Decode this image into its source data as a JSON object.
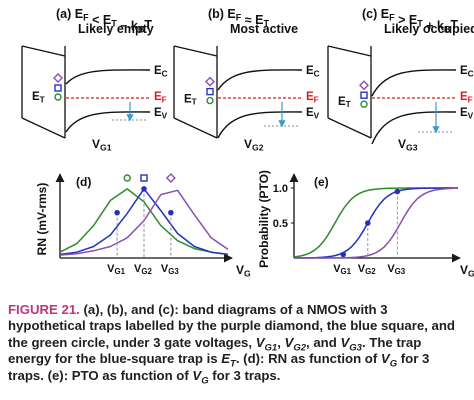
{
  "band_panels": [
    {
      "tag": "(a)",
      "condition": "E_F < E_T − k_BT",
      "status": "Likely empty",
      "gate": "V_G1",
      "labels": {
        "ec": "E_C",
        "ef": "E_F",
        "ev": "E_V",
        "et": "E_T"
      }
    },
    {
      "tag": "(b)",
      "condition": "E_F ≈ E_T",
      "status": "Most active",
      "gate": "V_G2",
      "labels": {
        "ec": "E_C",
        "ef": "E_F",
        "ev": "E_V",
        "et": "E_T"
      }
    },
    {
      "tag": "(c)",
      "condition": "E_F > E_T + k_BT",
      "status": "Likely occupied",
      "gate": "V_G3",
      "labels": {
        "ec": "E_C",
        "ef": "E_F",
        "ev": "E_V",
        "et": "E_T"
      }
    }
  ],
  "chart_data": [
    {
      "type": "line",
      "tag": "(d)",
      "ylabel": "RN (mV-rms)",
      "xlabel": "V_G",
      "xticks": [
        "V_G1",
        "V_G2",
        "V_G3"
      ],
      "x": [
        0.0,
        0.1,
        0.2,
        0.3,
        0.4,
        0.5,
        0.6,
        0.7,
        0.8,
        0.9,
        1.0
      ],
      "series": [
        {
          "trap": "green circle",
          "color": "#2e8b2e",
          "values": [
            0.08,
            0.2,
            0.45,
            0.8,
            0.96,
            0.78,
            0.45,
            0.24,
            0.13,
            0.08,
            0.05
          ]
        },
        {
          "trap": "blue square",
          "color": "#2233c4",
          "values": [
            0.05,
            0.08,
            0.16,
            0.32,
            0.62,
            0.96,
            0.66,
            0.34,
            0.16,
            0.08,
            0.05
          ]
        },
        {
          "trap": "purple diamond",
          "color": "#8a4fb5",
          "values": [
            0.04,
            0.06,
            0.1,
            0.16,
            0.28,
            0.52,
            0.88,
            0.94,
            0.6,
            0.28,
            0.12
          ]
        }
      ],
      "markers": [
        {
          "tick": "V_G1",
          "y": 0.63
        },
        {
          "tick": "V_G2",
          "y": 0.96
        },
        {
          "tick": "V_G3",
          "y": 0.63
        }
      ]
    },
    {
      "type": "line",
      "tag": "(e)",
      "ylabel": "Probability (PTO)",
      "xlabel": "V_G",
      "xticks": [
        "V_G1",
        "V_G2",
        "V_G3"
      ],
      "yticks": [
        {
          "value": 0.5,
          "label": "0.5"
        },
        {
          "value": 1.0,
          "label": "1.0"
        }
      ],
      "series": [
        {
          "trap": "green circle",
          "color": "#2e8b2e",
          "midpoint": 0.25,
          "width": 0.06
        },
        {
          "trap": "blue square",
          "color": "#2233c4",
          "midpoint": 0.45,
          "width": 0.06
        },
        {
          "trap": "purple diamond",
          "color": "#8a4fb5",
          "midpoint": 0.65,
          "width": 0.06
        }
      ],
      "markers": [
        {
          "tick": "V_G1",
          "y": 0.05
        },
        {
          "tick": "V_G2",
          "y": 0.5
        },
        {
          "tick": "V_G3",
          "y": 0.95
        }
      ]
    }
  ],
  "caption": {
    "label": "FIGURE 21.",
    "body_1": " (a), (b), and (c): band diagrams of a NMOS with 3 hypothetical traps labelled by the purple diamond, the blue square, and the green circle, under 3 gate voltages, ",
    "vg1": "V",
    "vg1_sub": "G1",
    "sep_1": ", ",
    "vg2": "V",
    "vg2_sub": "G2",
    "sep_2": ", and ",
    "vg3": "V",
    "vg3_sub": "G3",
    "body_2": ". The trap energy for the blue-square trap is ",
    "et": "E",
    "et_sub": "T",
    "body_3": ". (d): RN as function of ",
    "vg": "V",
    "vg_sub": "G",
    "body_4": " for 3 traps. (e): PTO as function of ",
    "vg_b": "V",
    "vg_b_sub": "G",
    "body_5": " for 3 traps."
  },
  "colors": {
    "green": "#2e8b2e",
    "blue": "#2233c4",
    "purple": "#8a4fb5",
    "fermi": "#d42020",
    "arrow": "#3a9cc8",
    "dash": "#888888",
    "caption_label": "#c0347e"
  }
}
